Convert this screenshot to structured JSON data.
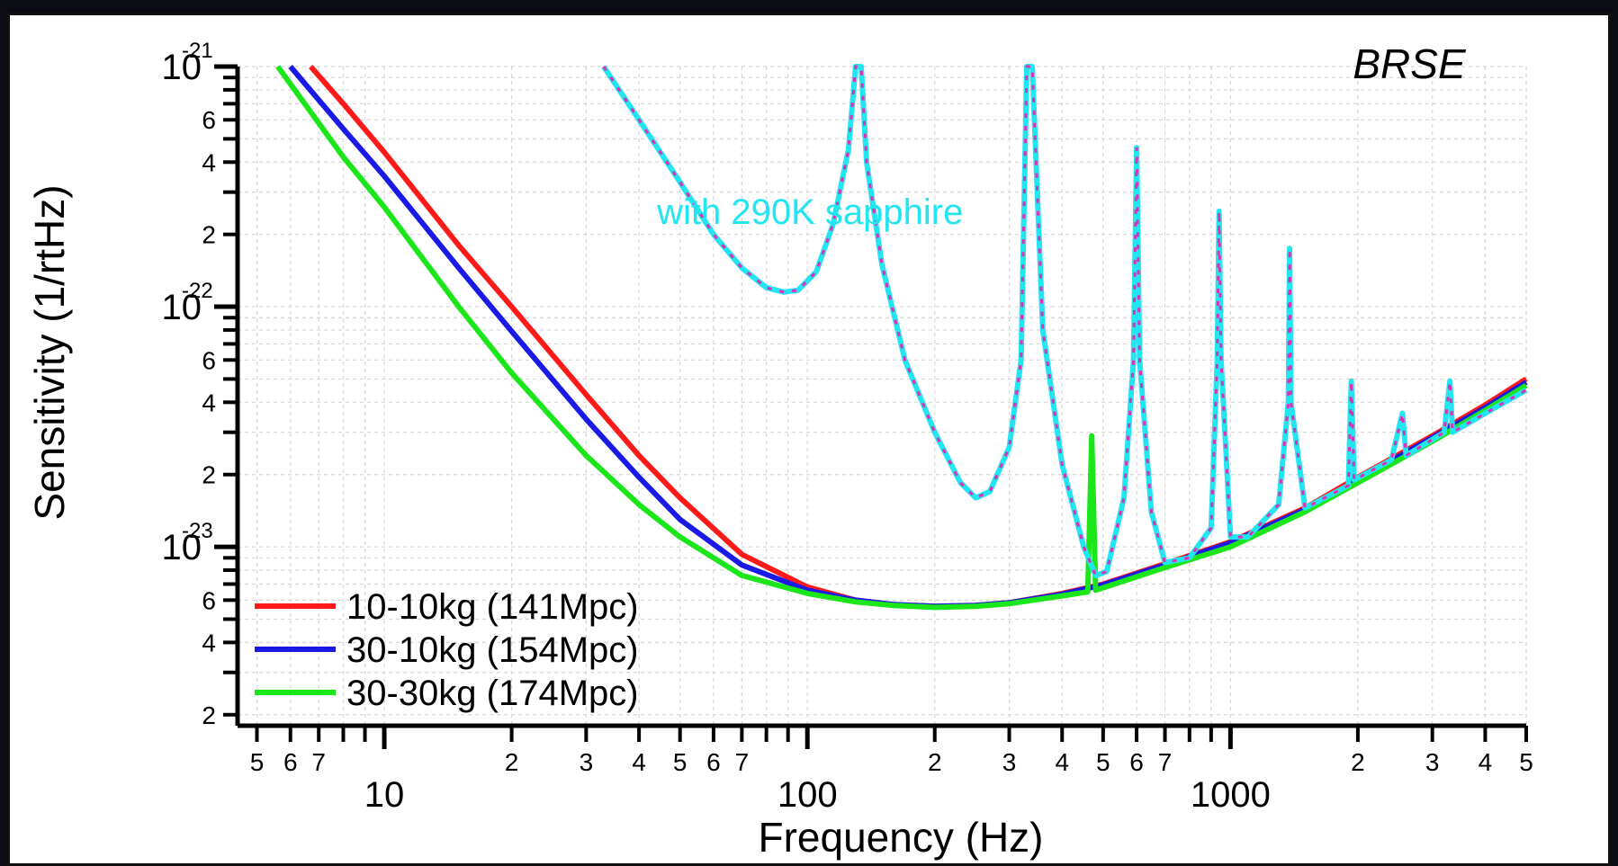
{
  "chart_data": {
    "type": "line",
    "title": "BRSE",
    "xlabel": "Frequency (Hz)",
    "ylabel": "Sensitivity (1/rtHz)",
    "x_scale": "log",
    "y_scale": "log",
    "xlim": [
      4.5,
      5000
    ],
    "ylim": [
      1.8e-24,
      1e-21
    ],
    "x_major_ticks": [
      {
        "value": 10,
        "label": "10"
      },
      {
        "value": 100,
        "label": "100"
      },
      {
        "value": 1000,
        "label": "1000"
      }
    ],
    "x_minor_labels": [
      {
        "value": 5,
        "label": "5"
      },
      {
        "value": 6,
        "label": "6"
      },
      {
        "value": 7,
        "label": "7"
      },
      {
        "value": 20,
        "label": "2"
      },
      {
        "value": 30,
        "label": "3"
      },
      {
        "value": 40,
        "label": "4"
      },
      {
        "value": 50,
        "label": "5"
      },
      {
        "value": 60,
        "label": "6"
      },
      {
        "value": 70,
        "label": "7"
      },
      {
        "value": 200,
        "label": "2"
      },
      {
        "value": 300,
        "label": "3"
      },
      {
        "value": 400,
        "label": "4"
      },
      {
        "value": 500,
        "label": "5"
      },
      {
        "value": 600,
        "label": "6"
      },
      {
        "value": 700,
        "label": "7"
      },
      {
        "value": 2000,
        "label": "2"
      },
      {
        "value": 3000,
        "label": "3"
      },
      {
        "value": 4000,
        "label": "4"
      },
      {
        "value": 5000,
        "label": "5"
      }
    ],
    "y_major_ticks": [
      {
        "value": 1e-21,
        "base": "10",
        "exp": "-21"
      },
      {
        "value": 1e-22,
        "base": "10",
        "exp": "-22"
      },
      {
        "value": 1e-23,
        "base": "10",
        "exp": "-23"
      }
    ],
    "y_minor_labels": [
      {
        "value": 6e-22,
        "label": "6"
      },
      {
        "value": 4e-22,
        "label": "4"
      },
      {
        "value": 2e-22,
        "label": "2"
      },
      {
        "value": 6e-23,
        "label": "6"
      },
      {
        "value": 4e-23,
        "label": "4"
      },
      {
        "value": 2e-23,
        "label": "2"
      },
      {
        "value": 6e-24,
        "label": "6"
      },
      {
        "value": 4e-24,
        "label": "4"
      },
      {
        "value": 2e-24,
        "label": "2"
      }
    ],
    "grid": true,
    "legend_position": "bottom-left",
    "annotation": {
      "text": "with 290K sapphire",
      "x": 72,
      "y": 2.5e-22,
      "color": "#22e5f2"
    },
    "series": [
      {
        "name": "10-10kg (141Mpc)",
        "color": "#ff1a1a",
        "points": [
          [
            6.7,
            1e-21
          ],
          [
            8,
            7e-22
          ],
          [
            10,
            4.4e-22
          ],
          [
            15,
            1.8e-22
          ],
          [
            20,
            1e-22
          ],
          [
            30,
            4.3e-23
          ],
          [
            40,
            2.4e-23
          ],
          [
            50,
            1.6e-23
          ],
          [
            70,
            9.3e-24
          ],
          [
            100,
            6.8e-24
          ],
          [
            130,
            6e-24
          ],
          [
            160,
            5.75e-24
          ],
          [
            200,
            5.65e-24
          ],
          [
            250,
            5.7e-24
          ],
          [
            300,
            5.85e-24
          ],
          [
            400,
            6.4e-24
          ],
          [
            500,
            7e-24
          ],
          [
            700,
            8.5e-24
          ],
          [
            1000,
            1.05e-23
          ],
          [
            1500,
            1.45e-23
          ],
          [
            2000,
            1.95e-23
          ],
          [
            3000,
            2.9e-23
          ],
          [
            4000,
            3.9e-23
          ],
          [
            5000,
            5e-23
          ]
        ]
      },
      {
        "name": "30-10kg (154Mpc)",
        "color": "#1a1ae6",
        "points": [
          [
            6.0,
            1e-21
          ],
          [
            8,
            5.5e-22
          ],
          [
            10,
            3.5e-22
          ],
          [
            15,
            1.45e-22
          ],
          [
            20,
            7.9e-23
          ],
          [
            30,
            3.4e-23
          ],
          [
            40,
            1.95e-23
          ],
          [
            50,
            1.3e-23
          ],
          [
            70,
            8.4e-24
          ],
          [
            100,
            6.6e-24
          ],
          [
            130,
            6e-24
          ],
          [
            160,
            5.75e-24
          ],
          [
            200,
            5.65e-24
          ],
          [
            250,
            5.7e-24
          ],
          [
            300,
            5.85e-24
          ],
          [
            400,
            6.35e-24
          ],
          [
            500,
            6.95e-24
          ],
          [
            700,
            8.4e-24
          ],
          [
            1000,
            1.04e-23
          ],
          [
            1500,
            1.43e-23
          ],
          [
            2000,
            1.9e-23
          ],
          [
            3000,
            2.85e-23
          ],
          [
            4000,
            3.8e-23
          ],
          [
            5000,
            4.85e-23
          ]
        ]
      },
      {
        "name": "30-30kg (174Mpc)",
        "color": "#1ae61a",
        "points": [
          [
            5.6,
            1e-21
          ],
          [
            8,
            4.2e-22
          ],
          [
            10,
            2.6e-22
          ],
          [
            15,
            1e-22
          ],
          [
            20,
            5.3e-23
          ],
          [
            30,
            2.4e-23
          ],
          [
            40,
            1.5e-23
          ],
          [
            50,
            1.1e-23
          ],
          [
            70,
            7.6e-24
          ],
          [
            100,
            6.4e-24
          ],
          [
            130,
            5.9e-24
          ],
          [
            160,
            5.7e-24
          ],
          [
            200,
            5.6e-24
          ],
          [
            250,
            5.65e-24
          ],
          [
            300,
            5.8e-24
          ],
          [
            400,
            6.25e-24
          ],
          [
            460,
            6.5e-24
          ],
          [
            470,
            2.9e-23
          ],
          [
            480,
            6.6e-24
          ],
          [
            700,
            8.2e-24
          ],
          [
            1000,
            1e-23
          ],
          [
            1500,
            1.4e-23
          ],
          [
            2000,
            1.85e-23
          ],
          [
            3000,
            2.75e-23
          ],
          [
            4000,
            3.7e-23
          ],
          [
            5000,
            4.7e-23
          ]
        ]
      },
      {
        "name": "",
        "color": "#22e5f2",
        "dashed": true,
        "points": [
          [
            33,
            1e-21
          ],
          [
            40,
            6e-22
          ],
          [
            50,
            3.3e-22
          ],
          [
            60,
            2e-22
          ],
          [
            70,
            1.45e-22
          ],
          [
            80,
            1.2e-22
          ],
          [
            88,
            1.15e-22
          ],
          [
            95,
            1.17e-22
          ],
          [
            105,
            1.4e-22
          ],
          [
            115,
            2.2e-22
          ],
          [
            125,
            4.5e-22
          ],
          [
            130,
            1e-21
          ],
          [
            134,
            1e-21
          ],
          [
            138,
            4e-22
          ],
          [
            150,
            1.5e-22
          ],
          [
            170,
            6e-23
          ],
          [
            200,
            3e-23
          ],
          [
            230,
            1.85e-23
          ],
          [
            250,
            1.6e-23
          ],
          [
            270,
            1.7e-23
          ],
          [
            300,
            2.6e-23
          ],
          [
            320,
            6e-23
          ],
          [
            330,
            1e-21
          ],
          [
            340,
            1e-21
          ],
          [
            360,
            8e-23
          ],
          [
            400,
            2.2e-23
          ],
          [
            450,
            1e-23
          ],
          [
            480,
            7.6e-24
          ],
          [
            510,
            7.9e-24
          ],
          [
            560,
            1.6e-23
          ],
          [
            590,
            6e-23
          ],
          [
            600,
            4.6e-22
          ],
          [
            610,
            6e-23
          ],
          [
            650,
            1.4e-23
          ],
          [
            700,
            8.6e-24
          ],
          [
            800,
            9e-24
          ],
          [
            900,
            1.2e-23
          ],
          [
            930,
            6e-23
          ],
          [
            940,
            2.5e-22
          ],
          [
            950,
            6e-23
          ],
          [
            1000,
            1.1e-23
          ],
          [
            1100,
            1.1e-23
          ],
          [
            1300,
            1.5e-23
          ],
          [
            1370,
            4e-23
          ],
          [
            1380,
            1.75e-22
          ],
          [
            1390,
            4e-23
          ],
          [
            1500,
            1.45e-23
          ],
          [
            1900,
            1.8e-23
          ],
          [
            1930,
            4.9e-23
          ],
          [
            1960,
            1.9e-23
          ],
          [
            2400,
            2.3e-23
          ],
          [
            2550,
            3.6e-23
          ],
          [
            2600,
            2.4e-23
          ],
          [
            3200,
            3e-23
          ],
          [
            3300,
            4.9e-23
          ],
          [
            3350,
            3e-23
          ],
          [
            4000,
            3.6e-23
          ],
          [
            5000,
            4.5e-23
          ]
        ]
      }
    ]
  }
}
